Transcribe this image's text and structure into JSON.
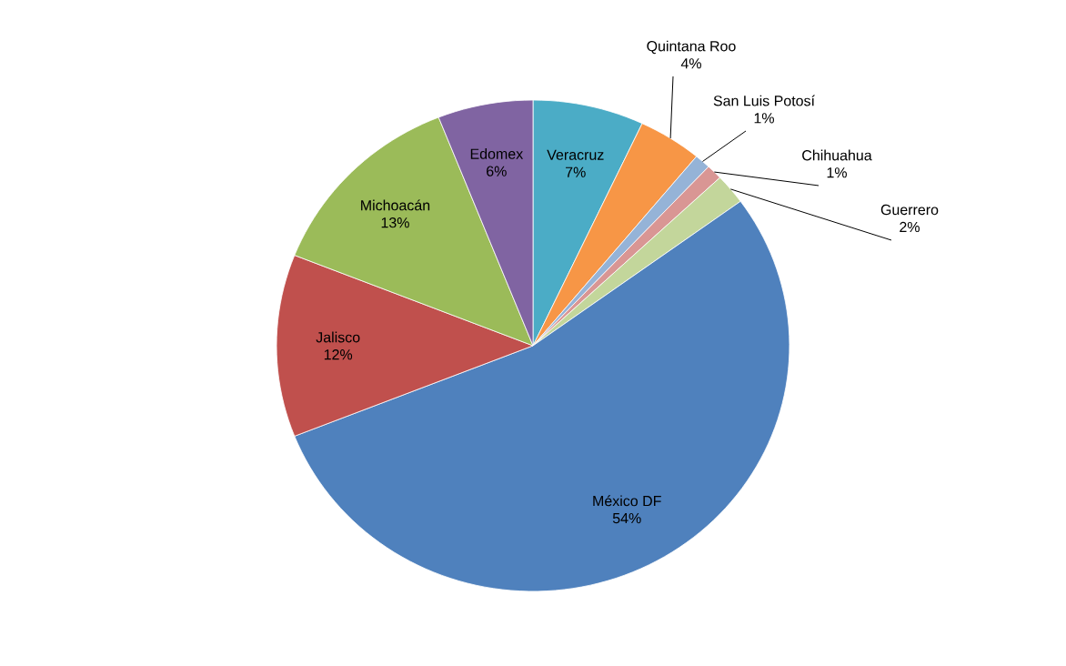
{
  "chart_data": {
    "type": "pie",
    "categories": [
      "Veracruz",
      "Quintana Roo",
      "San Luis Potosí",
      "Chihuahua",
      "Guerrero",
      "México DF",
      "Jalisco",
      "Michoacán",
      "Edomex"
    ],
    "values": [
      7,
      4,
      1,
      1,
      2,
      54,
      12,
      13,
      6
    ],
    "value_labels": [
      "7%",
      "4%",
      "1%",
      "1%",
      "2%",
      "54%",
      "12%",
      "13%",
      "6%"
    ],
    "colors": [
      "#4bacc6",
      "#f79646",
      "#95b3d7",
      "#d99694",
      "#c3d69b",
      "#4f81bd",
      "#c0504d",
      "#9bbb59",
      "#8064a2"
    ]
  }
}
